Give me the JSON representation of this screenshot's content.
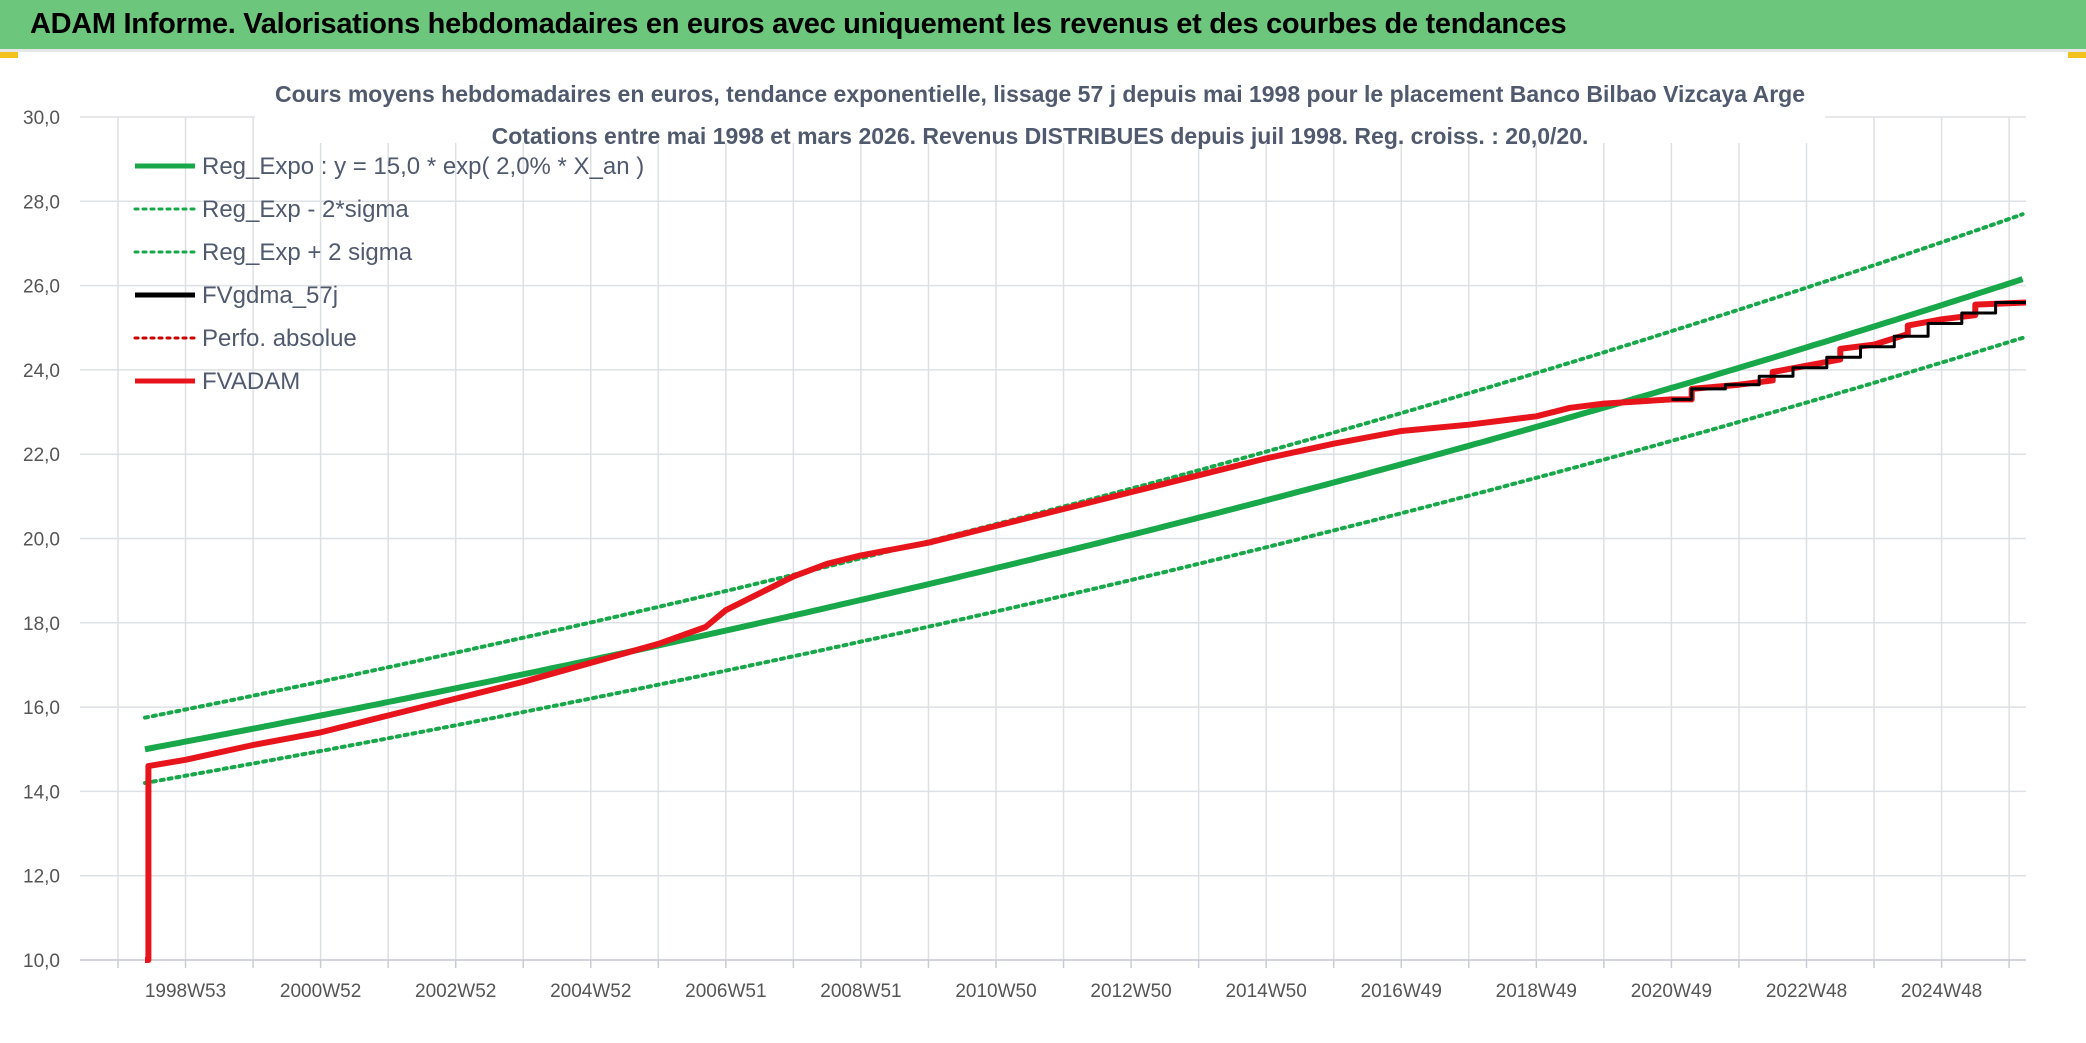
{
  "header": {
    "title": "ADAM Informe. Valorisations hebdomadaires en euros avec uniquement les revenus et des courbes de tendances"
  },
  "chart_data": {
    "type": "line",
    "title": "Cours moyens hebdomadaires en euros, tendance exponentielle, lissage 57 j depuis mai 1998 pour le placement Banco Bilbao Vizcaya Arge",
    "subtitle": "Cotations entre mai 1998 et mars 2026. Revenus DISTRIBUES depuis juil 1998. Reg. croiss. : 20,0/20.",
    "xlabel": "",
    "ylabel": "",
    "ylim": [
      10,
      30
    ],
    "yticks": [
      "10,0",
      "12,0",
      "14,0",
      "16,0",
      "18,0",
      "20,0",
      "22,0",
      "24,0",
      "26,0",
      "28,0",
      "30,0"
    ],
    "xticks": [
      "1998W53",
      "2000W52",
      "2002W52",
      "2004W52",
      "2006W51",
      "2008W51",
      "2010W50",
      "2012W50",
      "2014W50",
      "2016W49",
      "2018W49",
      "2020W49",
      "2022W48",
      "2024W48"
    ],
    "xlim": [
      1998.4,
      2026.25
    ],
    "grid": true,
    "legend_position": "top-left",
    "series": [
      {
        "name": "Reg_Expo : y = 15,0 * exp( 2,0% *  X_an )",
        "color": "#18a84a",
        "style": "solid",
        "width": 6,
        "x": [
          1998.4,
          2026.25
        ],
        "model": {
          "a": 15.0,
          "rate": 0.02,
          "x0": 1998.4
        }
      },
      {
        "name": "Reg_Exp - 2*sigma",
        "color": "#18a84a",
        "style": "dotted",
        "width": 4,
        "x": [
          1998.4,
          2026.25
        ],
        "model": {
          "a": 14.2,
          "rate": 0.02,
          "x0": 1998.4
        }
      },
      {
        "name": "Reg_Exp + 2 sigma",
        "color": "#18a84a",
        "style": "dotted",
        "width": 4,
        "x": [
          1998.4,
          2026.25
        ],
        "model": {
          "a": 15.75,
          "rate": 0.0203,
          "x0": 1998.4
        }
      },
      {
        "name": "FVgdma_57j",
        "color": "#000000",
        "style": "solid",
        "width": 3,
        "x": [
          2021.0,
          2021.3,
          2021.3,
          2021.8,
          2021.8,
          2022.3,
          2022.3,
          2022.8,
          2022.8,
          2023.3,
          2023.3,
          2023.8,
          2023.8,
          2024.3,
          2024.3,
          2024.8,
          2024.8,
          2025.3,
          2025.3,
          2025.8,
          2025.8,
          2026.25
        ],
        "y": [
          23.3,
          23.3,
          23.55,
          23.55,
          23.65,
          23.65,
          23.85,
          23.85,
          24.05,
          24.05,
          24.3,
          24.3,
          24.55,
          24.55,
          24.8,
          24.8,
          25.1,
          25.1,
          25.35,
          25.35,
          25.6,
          25.6
        ]
      },
      {
        "name": "Perfo. absolue",
        "color": "#cc0000",
        "style": "dotted",
        "width": 3,
        "x": [],
        "y": []
      },
      {
        "name": "FVADAM",
        "color": "#e8141c",
        "style": "solid",
        "width": 6,
        "x": [
          1998.4,
          1998.45,
          1998.45,
          1999.0,
          2000.0,
          2001.0,
          2002.0,
          2003.0,
          2004.0,
          2005.0,
          2006.0,
          2006.7,
          2007.0,
          2007.5,
          2008.0,
          2008.5,
          2009.0,
          2010.0,
          2011.0,
          2012.0,
          2013.0,
          2014.0,
          2015.0,
          2016.0,
          2017.0,
          2018.0,
          2019.0,
          2019.5,
          2020.0,
          2021.0,
          2021.3,
          2021.3,
          2022.0,
          2022.5,
          2022.5,
          2023.0,
          2023.5,
          2023.5,
          2024.0,
          2024.5,
          2024.5,
          2025.0,
          2025.5,
          2025.5,
          2026.25
        ],
        "y": [
          10.0,
          10.0,
          14.6,
          14.75,
          15.1,
          15.4,
          15.8,
          16.2,
          16.6,
          17.05,
          17.5,
          17.9,
          18.3,
          18.7,
          19.1,
          19.4,
          19.6,
          19.9,
          20.3,
          20.7,
          21.1,
          21.5,
          21.9,
          22.25,
          22.55,
          22.7,
          22.9,
          23.1,
          23.2,
          23.3,
          23.3,
          23.55,
          23.65,
          23.75,
          23.95,
          24.1,
          24.25,
          24.5,
          24.6,
          24.85,
          25.05,
          25.2,
          25.3,
          25.55,
          25.6
        ]
      }
    ]
  }
}
